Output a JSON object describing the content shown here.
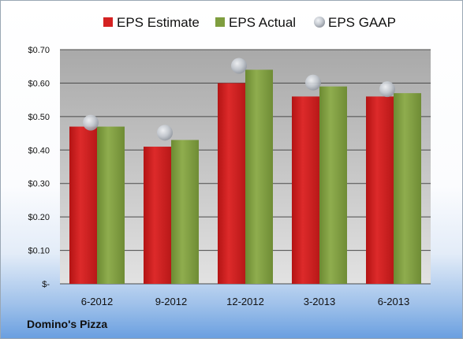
{
  "company_label": "Domino's Pizza",
  "chart_data": {
    "type": "bar",
    "categories": [
      "6-2012",
      "9-2012",
      "12-2012",
      "3-2013",
      "6-2013"
    ],
    "series": [
      {
        "name": "EPS Estimate",
        "values": [
          0.47,
          0.41,
          0.6,
          0.56,
          0.56
        ],
        "color": "#c91b1b"
      },
      {
        "name": "EPS Actual",
        "values": [
          0.47,
          0.43,
          0.64,
          0.59,
          0.57
        ],
        "color": "#7d9a3d"
      },
      {
        "name": "EPS GAAP",
        "values": [
          0.47,
          0.44,
          0.64,
          0.59,
          0.57
        ],
        "color": "#c8ccd2",
        "marker": "sphere"
      }
    ],
    "ylim": [
      0,
      0.7
    ],
    "y_ticks": [
      {
        "value": 0.0,
        "label": "$-"
      },
      {
        "value": 0.1,
        "label": "$0.10"
      },
      {
        "value": 0.2,
        "label": "$0.20"
      },
      {
        "value": 0.3,
        "label": "$0.30"
      },
      {
        "value": 0.4,
        "label": "$0.40"
      },
      {
        "value": 0.5,
        "label": "$0.50"
      },
      {
        "value": 0.6,
        "label": "$0.60"
      },
      {
        "value": 0.7,
        "label": "$0.70"
      }
    ],
    "grid": true,
    "legend_position": "top"
  }
}
